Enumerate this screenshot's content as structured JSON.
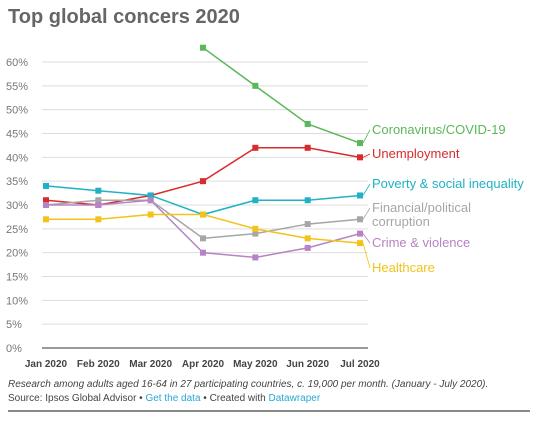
{
  "title": "Top global concers 2020",
  "chart_data": {
    "type": "line",
    "title": "Top global concers 2020",
    "categories": [
      "Jan 2020",
      "Feb 2020",
      "Mar 2020",
      "Apr 2020",
      "May 2020",
      "Jun 2020",
      "Jul 2020"
    ],
    "y_tick_labels": [
      "0%",
      "5%",
      "10%",
      "15%",
      "20%",
      "25%",
      "30%",
      "35%",
      "40%",
      "45%",
      "50%",
      "55%",
      "60%"
    ],
    "ylim": [
      0,
      63
    ],
    "grid": true,
    "xlabel": "",
    "ylabel": "",
    "series": [
      {
        "name": "Coronavirus/COVID-19",
        "label_lines": [
          "Coronavirus/COVID-19"
        ],
        "color": "#5ab75a",
        "values": [
          null,
          null,
          null,
          63,
          55,
          47,
          43
        ]
      },
      {
        "name": "Unemployment",
        "label_lines": [
          "Unemployment"
        ],
        "color": "#d92b2b",
        "values": [
          31,
          30,
          32,
          35,
          42,
          42,
          40
        ]
      },
      {
        "name": "Poverty & social inequality",
        "label_lines": [
          "Poverty & social inequality"
        ],
        "color": "#1fb2c4",
        "values": [
          34,
          33,
          32,
          28,
          31,
          31,
          32
        ]
      },
      {
        "name": "Financial/political corruption",
        "label_lines": [
          "Financial/political",
          "corruption"
        ],
        "color": "#a6a6a6",
        "values": [
          30,
          31,
          31,
          23,
          24,
          26,
          27
        ]
      },
      {
        "name": "Crime & violence",
        "label_lines": [
          "Crime & violence"
        ],
        "color": "#b783c4",
        "values": [
          30,
          30,
          31,
          20,
          19,
          21,
          24
        ]
      },
      {
        "name": "Healthcare",
        "label_lines": [
          "Healthcare"
        ],
        "color": "#f2c318",
        "values": [
          27,
          27,
          28,
          28,
          25,
          23,
          22
        ]
      }
    ]
  },
  "footer": {
    "note": "Research among adults aged 16-64 in 27 participating countries, c. 19,000 per month. (January - July 2020).",
    "source_prefix": "Source: Ipsos Global Advisor • ",
    "get_data": "Get the data",
    "created_with": " • Created with ",
    "datawrapper": "Datawraper"
  }
}
